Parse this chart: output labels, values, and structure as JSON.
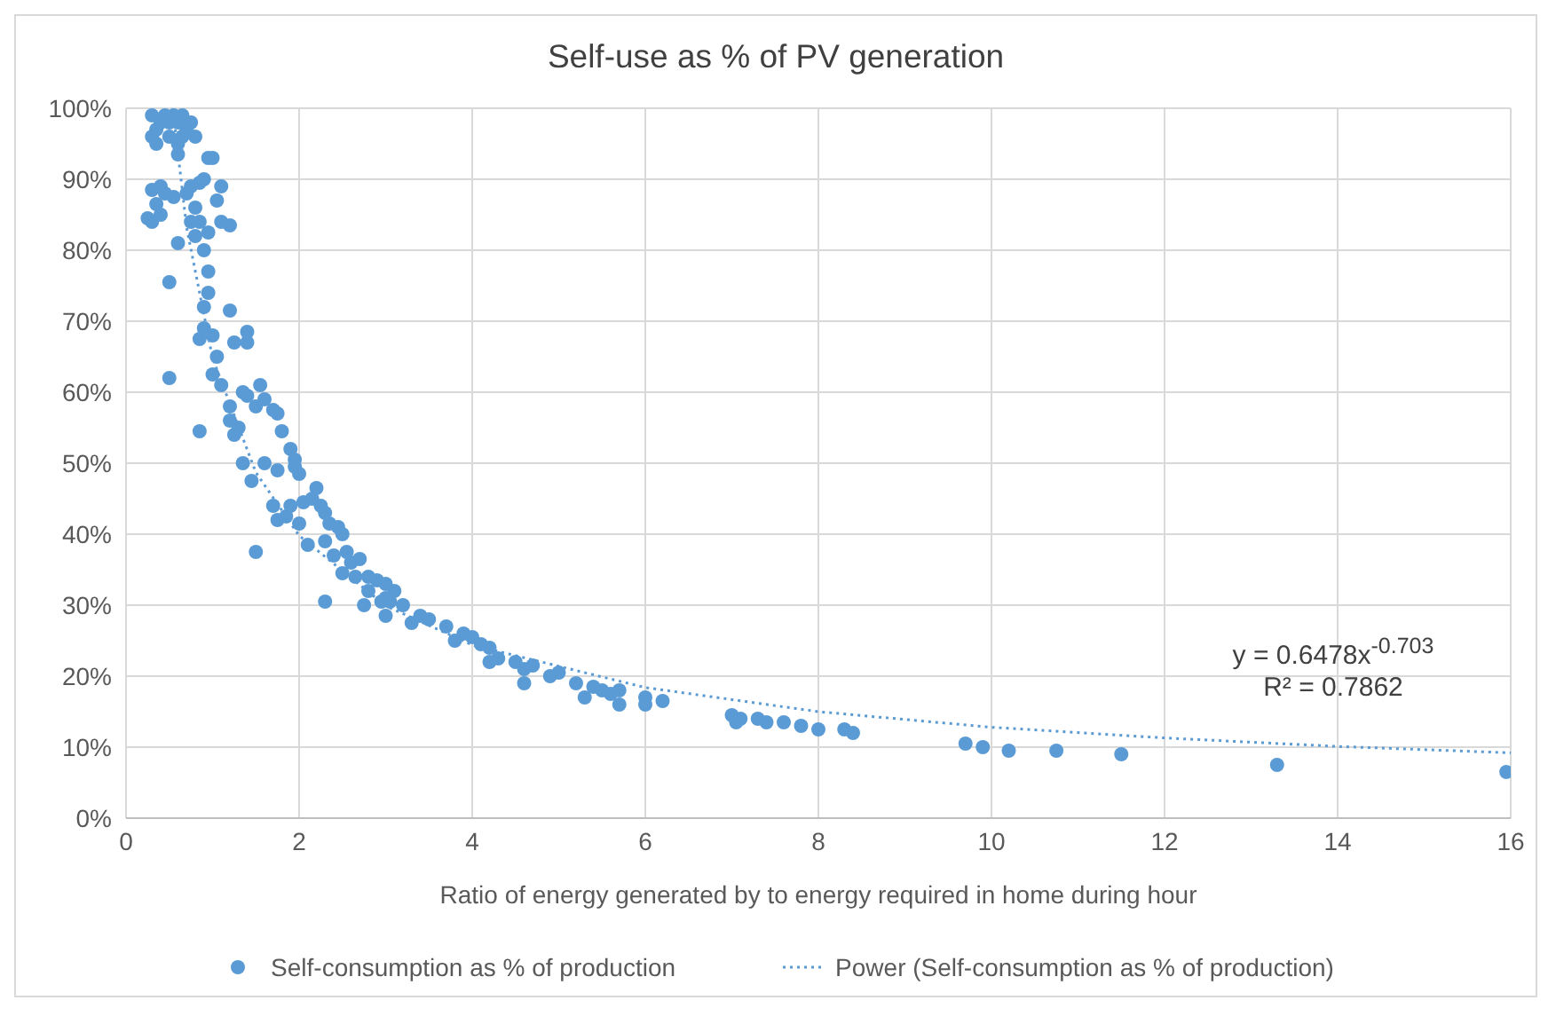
{
  "chart_data": {
    "type": "scatter",
    "title": "Self-use as % of PV generation",
    "xlabel": "Ratio of energy generated by to energy required in home during hour",
    "xlim": [
      0,
      16
    ],
    "xticks": [
      0,
      2,
      4,
      6,
      8,
      10,
      12,
      14,
      16
    ],
    "ylim": [
      0,
      100
    ],
    "yticks": [
      {
        "value": 0,
        "label": "0%"
      },
      {
        "value": 10,
        "label": "10%"
      },
      {
        "value": 20,
        "label": "20%"
      },
      {
        "value": 30,
        "label": "30%"
      },
      {
        "value": 40,
        "label": "40%"
      },
      {
        "value": 50,
        "label": "50%"
      },
      {
        "value": 60,
        "label": "60%"
      },
      {
        "value": 70,
        "label": "70%"
      },
      {
        "value": 80,
        "label": "80%"
      },
      {
        "value": 90,
        "label": "90%"
      },
      {
        "value": 100,
        "label": "100%"
      }
    ],
    "grid": true,
    "legend": "bottom",
    "annotations": [
      "y = 0.6478x$^{-0.703}$",
      "R² = 0.7862"
    ],
    "series": [
      {
        "name": "Self-consumption as % of production",
        "marker": "circle",
        "color": "#5b9bd5",
        "x": [
          0.3,
          0.35,
          0.4,
          0.45,
          0.5,
          0.55,
          0.6,
          0.65,
          0.3,
          0.5,
          0.7,
          0.75,
          0.8,
          0.6,
          0.35,
          0.65,
          0.6,
          1.0,
          0.95,
          0.9,
          0.85,
          0.75,
          0.7,
          0.4,
          0.3,
          0.55,
          0.45,
          0.35,
          0.4,
          0.25,
          0.3,
          0.8,
          0.75,
          0.85,
          1.1,
          1.05,
          1.1,
          1.2,
          0.6,
          0.95,
          0.8,
          0.9,
          0.5,
          0.95,
          0.95,
          0.9,
          0.9,
          1.2,
          1.0,
          0.85,
          1.05,
          1.25,
          1.4,
          1.4,
          1.0,
          1.1,
          0.5,
          1.2,
          1.35,
          1.4,
          1.55,
          1.6,
          1.5,
          1.7,
          1.75,
          0.85,
          1.2,
          1.3,
          1.25,
          1.8,
          1.9,
          1.95,
          1.95,
          1.6,
          1.75,
          2.0,
          1.45,
          1.35,
          2.2,
          2.15,
          2.05,
          2.25,
          1.7,
          1.75,
          1.9,
          1.85,
          2.0,
          1.5,
          2.3,
          2.35,
          2.45,
          2.5,
          2.3,
          2.1,
          2.4,
          2.55,
          2.6,
          2.7,
          2.5,
          2.65,
          2.8,
          2.3,
          2.8,
          2.9,
          3.0,
          3.1,
          3.0,
          3.05,
          2.95,
          2.75,
          3.2,
          3.0,
          3.4,
          3.5,
          3.3,
          3.7,
          3.9,
          3.8,
          4.0,
          4.1,
          4.2,
          4.3,
          4.2,
          4.5,
          4.7,
          4.6,
          4.6,
          5.0,
          4.9,
          5.2,
          5.4,
          5.5,
          5.7,
          5.6,
          5.3,
          5.7,
          6.0,
          6.2,
          6.0,
          7.0,
          7.1,
          7.05,
          7.3,
          7.4,
          7.6,
          7.8,
          8.0,
          8.3,
          8.4,
          9.7,
          9.9,
          10.2,
          10.75,
          11.5,
          13.3,
          15.95
        ],
        "values": [
          99,
          97,
          98,
          99,
          96,
          99,
          98,
          99,
          96,
          98,
          97,
          98,
          96,
          95,
          95,
          96,
          93.5,
          93,
          93,
          90,
          89.5,
          89,
          88,
          89,
          88.5,
          87.5,
          88,
          86.5,
          85,
          84.5,
          84,
          86,
          84,
          84,
          89,
          87,
          84,
          83.5,
          81,
          82.5,
          82,
          80,
          75.5,
          77,
          74,
          72,
          69,
          71.5,
          68,
          67.5,
          65,
          67,
          68.5,
          67,
          62.5,
          61,
          62,
          58,
          60,
          59.5,
          61,
          59,
          58,
          57.5,
          57,
          54.5,
          56,
          55,
          54,
          54.5,
          52,
          50.5,
          49.5,
          50,
          49,
          48.5,
          47.5,
          50,
          46.5,
          45,
          44.5,
          44,
          44,
          42,
          44,
          42.5,
          41.5,
          37.5,
          43,
          41.5,
          41,
          40,
          39,
          38.5,
          37,
          37.5,
          36,
          36.5,
          34.5,
          34,
          34,
          30.5,
          32,
          33.5,
          33,
          32,
          31,
          30.5,
          30.5,
          30,
          30,
          28.5,
          28.5,
          28,
          27.5,
          27,
          26,
          25,
          25.5,
          24.5,
          24,
          22.5,
          22,
          22,
          21.5,
          21,
          19,
          20.5,
          20,
          19,
          18.5,
          18,
          18,
          17.5,
          17,
          16,
          17,
          16.5,
          16,
          14.5,
          14,
          13.5,
          14,
          13.5,
          13.5,
          13,
          12.5,
          12.5,
          12,
          10.5,
          10,
          9.5,
          9.5,
          9,
          7.5,
          6.5
        ]
      },
      {
        "name": "Power (Self-consumption as % of production)",
        "type": "line",
        "marker": "none",
        "line_style": "dotted",
        "color": "#5b9bd5",
        "x": [
          0.54,
          0.7,
          1,
          1.5,
          2,
          3,
          4,
          6,
          8,
          10,
          12,
          14,
          16
        ],
        "values": [
          100,
          83.2,
          64.8,
          48.7,
          39.8,
          29.9,
          24.4,
          18.4,
          15.0,
          12.8,
          11.3,
          10.1,
          9.2
        ]
      }
    ]
  }
}
